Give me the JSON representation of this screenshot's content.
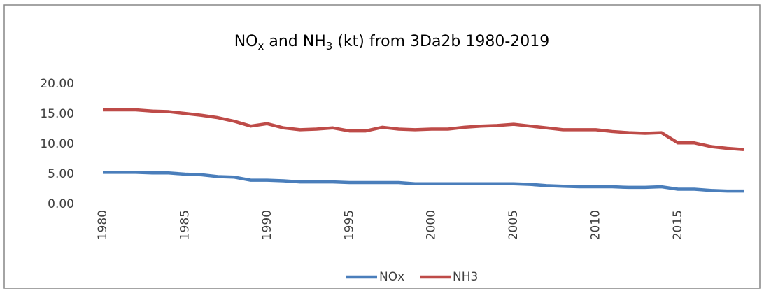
{
  "chart_data": {
    "type": "line",
    "title": [
      "NO",
      "x",
      " and NH",
      "3",
      " (kt) from 3Da2b 1980-2019"
    ],
    "x": [
      1980,
      1981,
      1982,
      1983,
      1984,
      1985,
      1986,
      1987,
      1988,
      1989,
      1990,
      1991,
      1992,
      1993,
      1994,
      1995,
      1996,
      1997,
      1998,
      1999,
      2000,
      2001,
      2002,
      2003,
      2004,
      2005,
      2006,
      2007,
      2008,
      2009,
      2010,
      2011,
      2012,
      2013,
      2014,
      2015,
      2016,
      2017,
      2018,
      2019
    ],
    "series": [
      {
        "name": "NOx",
        "color": "#4a7ebb",
        "values": [
          5.3,
          5.3,
          5.3,
          5.2,
          5.2,
          5.0,
          4.9,
          4.6,
          4.5,
          4.0,
          4.0,
          3.9,
          3.7,
          3.7,
          3.7,
          3.6,
          3.6,
          3.6,
          3.6,
          3.4,
          3.4,
          3.4,
          3.4,
          3.4,
          3.4,
          3.4,
          3.3,
          3.1,
          3.0,
          2.9,
          2.9,
          2.9,
          2.8,
          2.8,
          2.9,
          2.5,
          2.5,
          2.3,
          2.2,
          2.2
        ]
      },
      {
        "name": "NH3",
        "color": "#be4b48",
        "values": [
          15.7,
          15.7,
          15.7,
          15.5,
          15.4,
          15.1,
          14.8,
          14.4,
          13.8,
          13.0,
          13.4,
          12.7,
          12.4,
          12.5,
          12.7,
          12.2,
          12.2,
          12.8,
          12.5,
          12.4,
          12.5,
          12.5,
          12.8,
          13.0,
          13.1,
          13.3,
          13.0,
          12.7,
          12.4,
          12.4,
          12.4,
          12.1,
          11.9,
          11.8,
          11.9,
          10.2,
          10.2,
          9.6,
          9.3,
          9.1
        ]
      }
    ],
    "xlim": [
      1980,
      2019
    ],
    "xticks": [
      1980,
      1985,
      1990,
      1995,
      2000,
      2005,
      2010,
      2015
    ],
    "ylim": [
      0,
      20
    ],
    "yticks": [
      {
        "value": 0,
        "label": "0.00"
      },
      {
        "value": 5,
        "label": "5.00"
      },
      {
        "value": 10,
        "label": "10.00"
      },
      {
        "value": 15,
        "label": "15.00"
      },
      {
        "value": 20,
        "label": "20.00"
      }
    ],
    "grid": false,
    "legend": "bottom"
  }
}
